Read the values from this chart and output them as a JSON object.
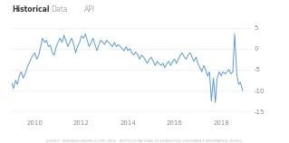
{
  "title_tabs": [
    "Historical",
    "Data",
    "API"
  ],
  "active_tab": 0,
  "x_ticks": [
    2010,
    2012,
    2014,
    2016,
    2018
  ],
  "y_ticks": [
    5,
    0,
    -5,
    -10,
    -15
  ],
  "y_lim": [
    -16.5,
    7
  ],
  "x_lim": [
    2009.0,
    2019.3
  ],
  "line_color": "#5b9bd5",
  "background_color": "#ffffff",
  "source_text": "SOURCE: TRADINGECONOMICS.COM | INEGI - INSTITUTO NACIONAL DE ESTADISTICA, GEOGRAFIA E INFORMATICA, MEXICO",
  "font_color": "#888888",
  "tab_active_color": "#333333",
  "tab_inactive_color": "#aaaaaa",
  "data_points": [
    [
      2009.0,
      -8.0
    ],
    [
      2009.08,
      -9.5
    ],
    [
      2009.17,
      -7.5
    ],
    [
      2009.25,
      -8.5
    ],
    [
      2009.33,
      -6.5
    ],
    [
      2009.42,
      -5.5
    ],
    [
      2009.5,
      -7.0
    ],
    [
      2009.58,
      -6.0
    ],
    [
      2009.67,
      -4.5
    ],
    [
      2009.75,
      -3.5
    ],
    [
      2009.83,
      -2.5
    ],
    [
      2009.92,
      -1.5
    ],
    [
      2010.0,
      -1.0
    ],
    [
      2010.08,
      -2.5
    ],
    [
      2010.17,
      -1.5
    ],
    [
      2010.25,
      0.5
    ],
    [
      2010.33,
      2.5
    ],
    [
      2010.42,
      1.5
    ],
    [
      2010.5,
      2.0
    ],
    [
      2010.58,
      0.5
    ],
    [
      2010.67,
      0.8
    ],
    [
      2010.75,
      -1.0
    ],
    [
      2010.83,
      -1.5
    ],
    [
      2010.92,
      0.5
    ],
    [
      2011.0,
      1.5
    ],
    [
      2011.08,
      2.5
    ],
    [
      2011.17,
      1.5
    ],
    [
      2011.25,
      3.2
    ],
    [
      2011.33,
      2.0
    ],
    [
      2011.42,
      0.5
    ],
    [
      2011.5,
      1.5
    ],
    [
      2011.58,
      2.5
    ],
    [
      2011.67,
      1.0
    ],
    [
      2011.75,
      -1.0
    ],
    [
      2011.83,
      0.5
    ],
    [
      2011.92,
      1.5
    ],
    [
      2012.0,
      3.0
    ],
    [
      2012.08,
      2.5
    ],
    [
      2012.17,
      3.5
    ],
    [
      2012.25,
      2.0
    ],
    [
      2012.33,
      0.5
    ],
    [
      2012.42,
      1.5
    ],
    [
      2012.5,
      2.5
    ],
    [
      2012.58,
      1.0
    ],
    [
      2012.67,
      -0.5
    ],
    [
      2012.75,
      1.0
    ],
    [
      2012.83,
      2.0
    ],
    [
      2012.92,
      1.5
    ],
    [
      2013.0,
      1.0
    ],
    [
      2013.08,
      2.0
    ],
    [
      2013.17,
      1.5
    ],
    [
      2013.25,
      1.0
    ],
    [
      2013.33,
      0.5
    ],
    [
      2013.42,
      1.5
    ],
    [
      2013.5,
      0.5
    ],
    [
      2013.58,
      1.0
    ],
    [
      2013.67,
      0.5
    ],
    [
      2013.75,
      0.0
    ],
    [
      2013.83,
      -0.5
    ],
    [
      2013.92,
      0.5
    ],
    [
      2014.0,
      -0.5
    ],
    [
      2014.08,
      0.0
    ],
    [
      2014.17,
      -1.0
    ],
    [
      2014.25,
      -1.5
    ],
    [
      2014.33,
      -0.8
    ],
    [
      2014.42,
      -1.5
    ],
    [
      2014.5,
      -2.5
    ],
    [
      2014.58,
      -1.5
    ],
    [
      2014.67,
      -2.0
    ],
    [
      2014.75,
      -2.8
    ],
    [
      2014.83,
      -3.5
    ],
    [
      2014.92,
      -2.5
    ],
    [
      2015.0,
      -2.0
    ],
    [
      2015.08,
      -3.0
    ],
    [
      2015.17,
      -4.0
    ],
    [
      2015.25,
      -3.0
    ],
    [
      2015.33,
      -3.5
    ],
    [
      2015.42,
      -4.0
    ],
    [
      2015.5,
      -3.5
    ],
    [
      2015.58,
      -4.5
    ],
    [
      2015.67,
      -3.5
    ],
    [
      2015.75,
      -3.0
    ],
    [
      2015.83,
      -4.0
    ],
    [
      2015.92,
      -3.0
    ],
    [
      2016.0,
      -2.5
    ],
    [
      2016.08,
      -3.5
    ],
    [
      2016.17,
      -2.5
    ],
    [
      2016.25,
      -1.5
    ],
    [
      2016.33,
      -1.0
    ],
    [
      2016.42,
      -2.0
    ],
    [
      2016.5,
      -2.5
    ],
    [
      2016.58,
      -1.5
    ],
    [
      2016.67,
      -1.0
    ],
    [
      2016.75,
      -2.0
    ],
    [
      2016.83,
      -3.0
    ],
    [
      2016.92,
      -2.0
    ],
    [
      2017.0,
      -3.5
    ],
    [
      2017.08,
      -4.5
    ],
    [
      2017.17,
      -5.5
    ],
    [
      2017.25,
      -4.0
    ],
    [
      2017.33,
      -5.0
    ],
    [
      2017.42,
      -6.5
    ],
    [
      2017.5,
      -5.5
    ],
    [
      2017.58,
      -12.5
    ],
    [
      2017.67,
      -7.0
    ],
    [
      2017.75,
      -12.8
    ],
    [
      2017.83,
      -7.0
    ],
    [
      2017.92,
      -5.5
    ],
    [
      2018.0,
      -6.5
    ],
    [
      2018.08,
      -5.5
    ],
    [
      2018.17,
      -6.0
    ],
    [
      2018.25,
      -5.5
    ],
    [
      2018.33,
      -5.0
    ],
    [
      2018.42,
      -6.0
    ],
    [
      2018.5,
      -5.5
    ],
    [
      2018.58,
      3.5
    ],
    [
      2018.67,
      -6.0
    ],
    [
      2018.75,
      -8.5
    ],
    [
      2018.83,
      -8.0
    ],
    [
      2018.92,
      -10.0
    ]
  ]
}
